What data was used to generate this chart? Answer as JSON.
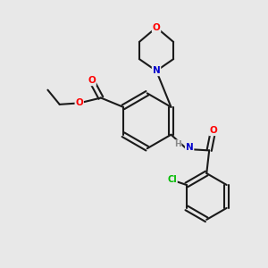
{
  "background_color": "#e8e8e8",
  "bond_color": "#1a1a1a",
  "bond_width": 1.5,
  "atom_colors": {
    "O": "#ff0000",
    "N": "#0000cc",
    "Cl": "#00bb00",
    "C": "#1a1a1a",
    "H": "#888888"
  },
  "figsize": [
    3.0,
    3.0
  ],
  "dpi": 100,
  "xlim": [
    0,
    10
  ],
  "ylim": [
    0,
    10
  ]
}
